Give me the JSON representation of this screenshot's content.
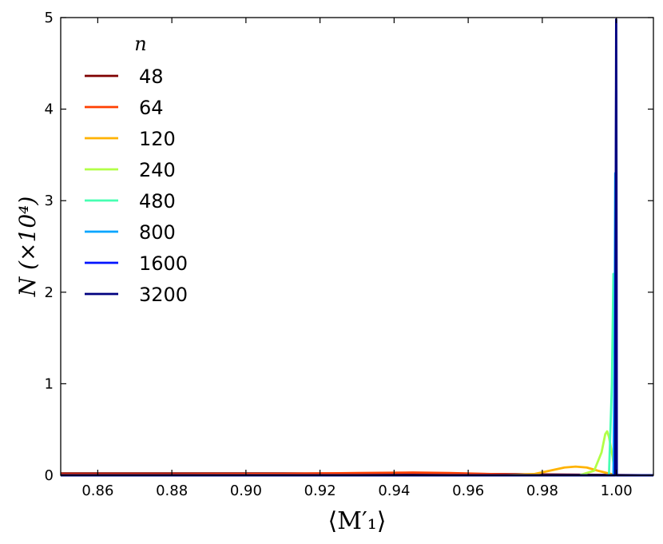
{
  "chart_data": {
    "type": "line",
    "xlabel": "⟨M′₁⟩",
    "ylabel": "N (×10⁴)",
    "xlim": [
      0.85,
      1.01
    ],
    "ylim": [
      0,
      5
    ],
    "x_ticks": [
      "0.86",
      "0.88",
      "0.90",
      "0.92",
      "0.94",
      "0.96",
      "0.98",
      "1.00"
    ],
    "y_ticks": [
      "0",
      "1",
      "2",
      "3",
      "4",
      "5"
    ],
    "grid": false,
    "legend": {
      "title": "n",
      "placement": "top-left"
    },
    "series": [
      {
        "name": "48",
        "color": "#7f0000",
        "x": [
          0.85,
          0.88,
          0.92,
          0.94,
          0.96,
          0.98,
          1.01
        ],
        "y": [
          0.02,
          0.02,
          0.02,
          0.02,
          0.015,
          0.01,
          0.0
        ]
      },
      {
        "name": "64",
        "color": "#ff3f00",
        "x": [
          0.85,
          0.88,
          0.91,
          0.93,
          0.945,
          0.955,
          0.965,
          0.975,
          0.985,
          1.01
        ],
        "y": [
          0.01,
          0.01,
          0.015,
          0.025,
          0.03,
          0.025,
          0.015,
          0.005,
          0.0,
          0.0
        ]
      },
      {
        "name": "120",
        "color": "#ffb300",
        "x": [
          0.85,
          0.97,
          0.978,
          0.982,
          0.986,
          0.989,
          0.992,
          0.995,
          0.998,
          1.0,
          1.01
        ],
        "y": [
          0.0,
          0.0,
          0.015,
          0.05,
          0.085,
          0.095,
          0.085,
          0.05,
          0.02,
          0.0,
          0.0
        ]
      },
      {
        "name": "240",
        "color": "#b2ff47",
        "x": [
          0.85,
          0.99,
          0.994,
          0.996,
          0.997,
          0.9975,
          0.998,
          0.999,
          0.9995,
          1.0,
          1.01
        ],
        "y": [
          0.0,
          0.0,
          0.05,
          0.25,
          0.45,
          0.48,
          0.42,
          0.2,
          0.05,
          0.0,
          0.0
        ]
      },
      {
        "name": "480",
        "color": "#47ffb2",
        "x": [
          0.85,
          0.998,
          0.9988,
          0.9992,
          0.9995,
          0.9997,
          1.0,
          1.01
        ],
        "y": [
          0.0,
          0.0,
          1.0,
          2.2,
          1.5,
          0.5,
          0.0,
          0.0
        ]
      },
      {
        "name": "800",
        "color": "#00a5ff",
        "x": [
          0.85,
          0.9992,
          0.9995,
          0.9997,
          0.9999,
          1.0,
          1.01
        ],
        "y": [
          0.0,
          0.0,
          1.2,
          3.3,
          1.5,
          0.0,
          0.0
        ]
      },
      {
        "name": "1600",
        "color": "#0014ff",
        "x": [
          0.85,
          0.9996,
          0.9998,
          0.99995,
          1.0001,
          1.01
        ],
        "y": [
          0.0,
          0.0,
          2.5,
          4.2,
          0.0,
          0.0
        ]
      },
      {
        "name": "3200",
        "color": "#00007f",
        "x": [
          0.85,
          0.9997,
          0.99985,
          0.99995,
          1.00002,
          1.00008,
          1.01
        ],
        "y": [
          0.0,
          0.0,
          3.0,
          4.98,
          3.2,
          0.0,
          0.0
        ]
      }
    ]
  }
}
